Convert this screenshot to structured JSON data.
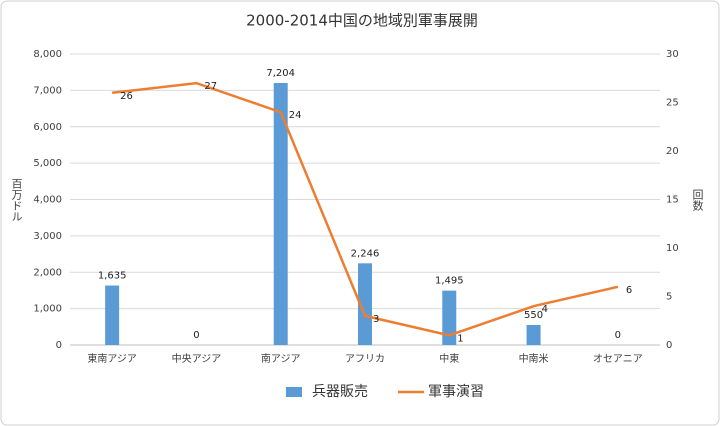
{
  "chart_data": {
    "type": "bar",
    "title": "2000-2014中国の地域別軍事展開",
    "y_label": "百万ドル",
    "y2_label": "回数",
    "categories": [
      "東南アジア",
      "中央アジア",
      "南アジア",
      "アフリカ",
      "中東",
      "中南米",
      "オセアニア"
    ],
    "series": [
      {
        "name": "兵器販売",
        "type": "bar",
        "color": "#5b9bd5",
        "values": [
          1635,
          0,
          7204,
          2246,
          1495,
          550,
          0
        ],
        "value_labels": [
          "1,635",
          "0",
          "7,204",
          "2,246",
          "1,495",
          "550",
          "0"
        ]
      },
      {
        "name": "軍事演習",
        "type": "line",
        "color": "#ed7d31",
        "axis": "y2",
        "values": [
          26,
          27,
          24,
          3,
          1,
          4,
          6
        ]
      }
    ],
    "ylim": [
      0,
      8000
    ],
    "yticks": [
      0,
      {
        "value": 1000,
        "label": "1,000"
      },
      {
        "value": 2000,
        "label": "2,000"
      },
      {
        "value": 3000,
        "label": "3,000"
      },
      {
        "value": 4000,
        "label": "4,000"
      },
      {
        "value": 5000,
        "label": "5,000"
      },
      {
        "value": 6000,
        "label": "6,000"
      },
      {
        "value": 7000,
        "label": "7,000"
      },
      {
        "value": 8000,
        "label": "8,000"
      }
    ],
    "y2lim": [
      0,
      30
    ],
    "y2ticks": [
      0,
      5,
      10,
      15,
      20,
      25,
      30
    ],
    "grid": true,
    "legend": "bottom"
  }
}
